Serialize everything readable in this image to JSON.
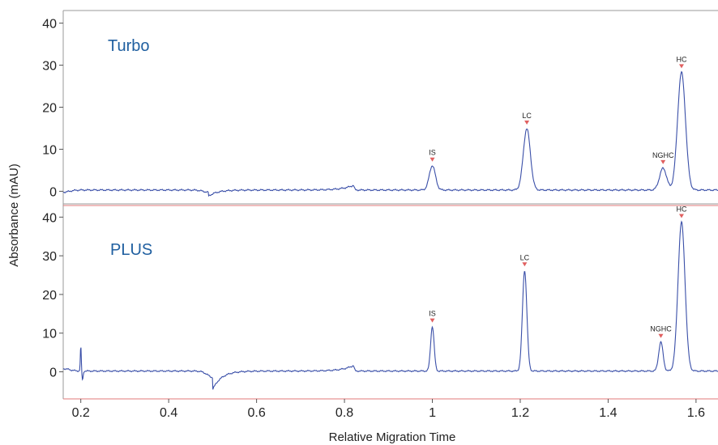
{
  "chart_data": {
    "type": "line",
    "xlabel": "Relative Migration Time",
    "ylabel": "Absorbance (mAU)",
    "xlim": [
      0.16,
      1.65
    ],
    "x_ticks": [
      "0.2",
      "0.4",
      "0.6",
      "0.8",
      "1",
      "1.2",
      "1.4",
      "1.6"
    ],
    "x_tick_values": [
      0.2,
      0.4,
      0.6,
      0.8,
      1.0,
      1.2,
      1.4,
      1.6
    ],
    "colors": {
      "trace": "#3a4fa8",
      "marker": "#e06060",
      "panel_label": "#1f5fa0",
      "frame": "#9a9a9a",
      "divider": "#e07a7a"
    },
    "panels": [
      {
        "label": "Turbo",
        "ylim": [
          -3,
          43
        ],
        "y_ticks": [
          "0",
          "10",
          "20",
          "30",
          "40"
        ],
        "y_tick_values": [
          0,
          10,
          20,
          30,
          40
        ],
        "baseline": 0.3,
        "start_x": 0.16,
        "start_y": -0.2,
        "dip": {
          "x": 0.49,
          "depth": -1.5
        },
        "hump": {
          "x": 0.82,
          "height": 1.1
        },
        "peaks": [
          {
            "name": "IS",
            "x": 1.0,
            "height": 5.8,
            "width": 0.007
          },
          {
            "name": "LC",
            "x": 1.215,
            "height": 14.6,
            "width": 0.008
          },
          {
            "name": "NGHC",
            "x": 1.525,
            "height": 5.2,
            "width": 0.008
          },
          {
            "name": "HC",
            "x": 1.567,
            "height": 28.0,
            "width": 0.009
          }
        ]
      },
      {
        "label": "PLUS",
        "ylim": [
          -7,
          43
        ],
        "y_ticks": [
          "0",
          "10",
          "20",
          "30",
          "40"
        ],
        "y_tick_values": [
          0,
          10,
          20,
          30,
          40
        ],
        "baseline": 0.2,
        "start_x": 0.16,
        "start_y": 0.8,
        "spike": {
          "x": 0.2,
          "height": 6.5
        },
        "dip": {
          "x": 0.5,
          "depth": -4.8
        },
        "hump": {
          "x": 0.82,
          "height": 1.4
        },
        "peaks": [
          {
            "name": "IS",
            "x": 1.0,
            "height": 11.5,
            "width": 0.004
          },
          {
            "name": "LC",
            "x": 1.21,
            "height": 26.0,
            "width": 0.005
          },
          {
            "name": "NGHC",
            "x": 1.52,
            "height": 7.5,
            "width": 0.005
          },
          {
            "name": "HC",
            "x": 1.567,
            "height": 38.5,
            "width": 0.008
          }
        ]
      }
    ]
  }
}
